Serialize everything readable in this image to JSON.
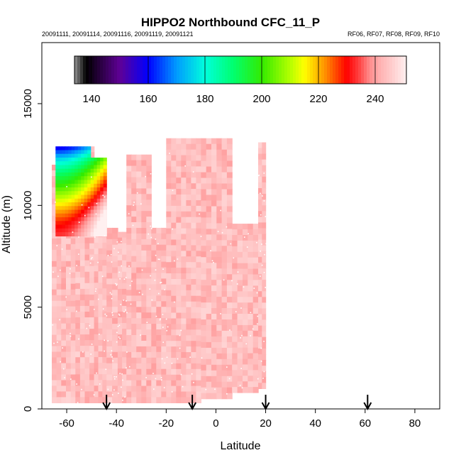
{
  "chart_data": {
    "type": "heatmap",
    "title": "HIPPO2 Northbound CFC_11_P",
    "subtitle_left": "20091111, 20091114, 20091116, 20091119, 20091121",
    "subtitle_right": "RF06, RF07, RF08, RF09, RF10",
    "xlabel": "Latitude",
    "ylabel": "Altitude (m)",
    "xlim": [
      -70,
      90
    ],
    "ylim": [
      0,
      18000
    ],
    "x_ticks": [
      -60,
      -40,
      -20,
      0,
      20,
      40,
      60,
      80
    ],
    "y_ticks": [
      0,
      5000,
      10000,
      15000
    ],
    "grid": false,
    "colorbar": {
      "placement": "top-inside",
      "range": [
        134,
        251
      ],
      "ticks": [
        140,
        160,
        180,
        200,
        220,
        240
      ]
    },
    "arrow_latitudes": [
      -44,
      -9.5,
      20,
      61
    ],
    "curtain_columns": [
      {
        "x0": -66,
        "x1": -56.5,
        "ymin": 300,
        "ymax": 12000
      },
      {
        "x0": -56.5,
        "x1": -49,
        "ymin": 300,
        "ymax": 12900
      },
      {
        "x0": -49,
        "x1": -44,
        "ymin": 300,
        "ymax": 12100
      },
      {
        "x0": -44,
        "x1": -39.5,
        "ymin": 300,
        "ymax": 8900
      },
      {
        "x0": -39.5,
        "x1": -36,
        "ymin": 300,
        "ymax": 8700
      },
      {
        "x0": -36,
        "x1": -26,
        "ymin": 300,
        "ymax": 12500
      },
      {
        "x0": -26,
        "x1": -20,
        "ymin": 300,
        "ymax": 8900
      },
      {
        "x0": -20,
        "x1": -6,
        "ymin": 300,
        "ymax": 13300
      },
      {
        "x0": -6,
        "x1": 6.5,
        "ymin": 500,
        "ymax": 13300
      },
      {
        "x0": 6.5,
        "x1": 17,
        "ymin": 800,
        "ymax": 9100
      },
      {
        "x0": 17,
        "x1": 20,
        "ymin": 1000,
        "ymax": 13100
      }
    ],
    "high_values_region": {
      "x_range": [
        -64.5,
        -44
      ],
      "y_range": [
        8500,
        12900
      ],
      "values_top_to_bottom": [
        160,
        178,
        190,
        200,
        210,
        220,
        228,
        233
      ]
    },
    "background_value_range": [
      240,
      247
    ]
  }
}
